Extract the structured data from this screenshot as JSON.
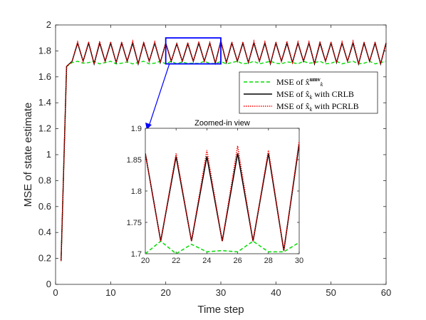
{
  "chart_data": {
    "type": "line",
    "xlabel": "Time step",
    "ylabel": "MSE of state estimate",
    "xlim": [
      0,
      60
    ],
    "ylim": [
      0,
      2
    ],
    "xticks": [
      "0",
      "10",
      "20",
      "30",
      "40",
      "50",
      "60"
    ],
    "yticks": [
      "0",
      "0.2",
      "0.4",
      "0.6",
      "0.8",
      "1",
      "1.2",
      "1.4",
      "1.6",
      "1.8",
      "2"
    ],
    "legend_position": "right",
    "series": [
      {
        "name": "MSE of x̂",
        "name_sup": "umv",
        "name_sub": "k",
        "name_suffix": "",
        "color": "#00dd00",
        "style": "dashed",
        "x": [
          1,
          2,
          3,
          4,
          5,
          6,
          7,
          8,
          9,
          10,
          11,
          12,
          13,
          14,
          15,
          16,
          17,
          18,
          19,
          20,
          21,
          22,
          23,
          24,
          25,
          26,
          27,
          28,
          29,
          30,
          31,
          32,
          33,
          34,
          35,
          36,
          37,
          38,
          39,
          40,
          41,
          42,
          43,
          44,
          45,
          46,
          47,
          48,
          49,
          50,
          51,
          52,
          53,
          54,
          55,
          56,
          57,
          58,
          59,
          60
        ],
        "values": [
          0.18,
          1.68,
          1.71,
          1.72,
          1.705,
          1.71,
          1.72,
          1.7,
          1.71,
          1.72,
          1.7,
          1.705,
          1.715,
          1.7,
          1.71,
          1.72,
          1.7,
          1.705,
          1.72,
          1.7,
          1.72,
          1.7,
          1.715,
          1.703,
          1.705,
          1.703,
          1.72,
          1.703,
          1.703,
          1.718,
          1.7,
          1.71,
          1.72,
          1.7,
          1.705,
          1.72,
          1.7,
          1.71,
          1.72,
          1.705,
          1.7,
          1.715,
          1.71,
          1.7,
          1.72,
          1.705,
          1.71,
          1.72,
          1.7,
          1.705,
          1.72,
          1.7,
          1.71,
          1.72,
          1.7,
          1.705,
          1.72,
          1.7,
          1.71,
          1.72
        ]
      },
      {
        "name": "MSE of x̂",
        "name_sup": "",
        "name_sub": "k",
        "name_suffix": " with CRLB",
        "color": "#000000",
        "style": "solid",
        "x": [
          1,
          2,
          3,
          4,
          5,
          6,
          7,
          8,
          9,
          10,
          11,
          12,
          13,
          14,
          15,
          16,
          17,
          18,
          19,
          20,
          21,
          22,
          23,
          24,
          25,
          26,
          27,
          28,
          29,
          30,
          31,
          32,
          33,
          34,
          35,
          36,
          37,
          38,
          39,
          40,
          41,
          42,
          43,
          44,
          45,
          46,
          47,
          48,
          49,
          50,
          51,
          52,
          53,
          54,
          55,
          56,
          57,
          58,
          59,
          60
        ],
        "values": [
          0.18,
          1.68,
          1.72,
          1.86,
          1.72,
          1.86,
          1.7,
          1.86,
          1.72,
          1.86,
          1.71,
          1.86,
          1.72,
          1.86,
          1.7,
          1.86,
          1.72,
          1.86,
          1.71,
          1.86,
          1.72,
          1.855,
          1.72,
          1.855,
          1.72,
          1.86,
          1.72,
          1.86,
          1.705,
          1.875,
          1.71,
          1.86,
          1.72,
          1.86,
          1.71,
          1.86,
          1.72,
          1.86,
          1.7,
          1.86,
          1.72,
          1.86,
          1.71,
          1.86,
          1.72,
          1.86,
          1.7,
          1.86,
          1.72,
          1.86,
          1.71,
          1.86,
          1.72,
          1.86,
          1.7,
          1.86,
          1.72,
          1.86,
          1.7,
          1.86
        ]
      },
      {
        "name": "MSE of x̂",
        "name_sup": "",
        "name_sub": "k",
        "name_suffix": " with PCRLB",
        "color": "#ff0000",
        "style": "dotted",
        "x": [
          1,
          2,
          3,
          4,
          5,
          6,
          7,
          8,
          9,
          10,
          11,
          12,
          13,
          14,
          15,
          16,
          17,
          18,
          19,
          20,
          21,
          22,
          23,
          24,
          25,
          26,
          27,
          28,
          29,
          30,
          31,
          32,
          33,
          34,
          35,
          36,
          37,
          38,
          39,
          40,
          41,
          42,
          43,
          44,
          45,
          46,
          47,
          48,
          49,
          50,
          51,
          52,
          53,
          54,
          55,
          56,
          57,
          58,
          59,
          60
        ],
        "values": [
          0.18,
          1.68,
          1.72,
          1.87,
          1.72,
          1.87,
          1.7,
          1.875,
          1.72,
          1.87,
          1.71,
          1.87,
          1.72,
          1.875,
          1.7,
          1.87,
          1.72,
          1.87,
          1.71,
          1.86,
          1.72,
          1.86,
          1.72,
          1.865,
          1.72,
          1.872,
          1.72,
          1.865,
          1.705,
          1.88,
          1.71,
          1.87,
          1.72,
          1.87,
          1.71,
          1.875,
          1.72,
          1.87,
          1.7,
          1.87,
          1.72,
          1.875,
          1.71,
          1.87,
          1.72,
          1.87,
          1.7,
          1.875,
          1.72,
          1.87,
          1.71,
          1.87,
          1.72,
          1.875,
          1.7,
          1.87,
          1.72,
          1.87,
          1.7,
          1.87
        ]
      }
    ],
    "inset": {
      "title": "Zoomed-in view",
      "xlim": [
        20,
        30
      ],
      "ylim": [
        1.7,
        1.9
      ],
      "xticks": [
        "20",
        "22",
        "24",
        "26",
        "28",
        "30"
      ],
      "yticks": [
        "1.7",
        "1.75",
        "1.8",
        "1.85",
        "1.9"
      ]
    },
    "zoom_box": {
      "xlim": [
        20,
        30
      ],
      "ylim": [
        1.7,
        1.9
      ],
      "color": "#0000ff"
    }
  }
}
